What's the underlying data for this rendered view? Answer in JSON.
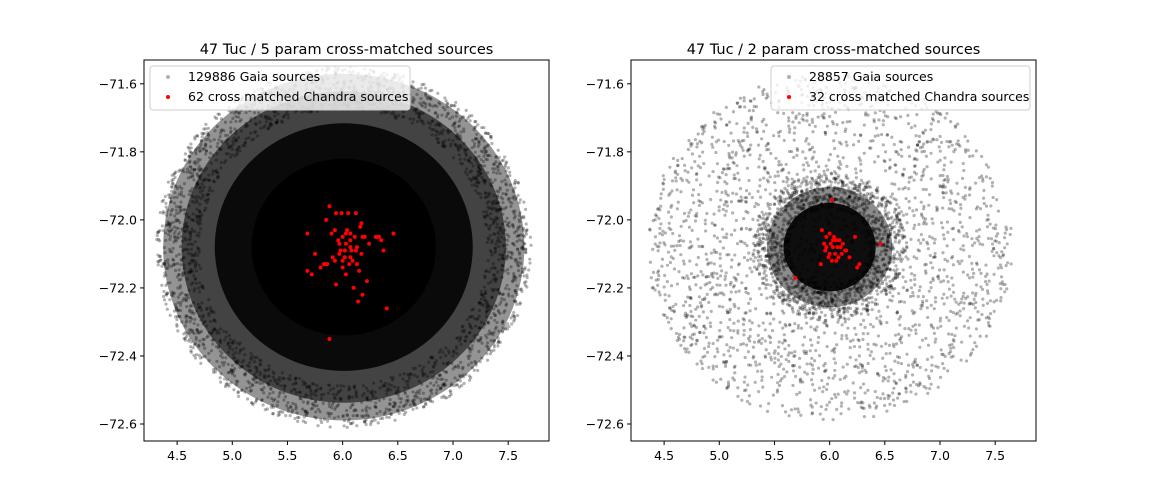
{
  "chart_data": [
    {
      "type": "scatter",
      "title": "47 Tuc / 5 param cross-matched sources",
      "xlabel": "",
      "ylabel": "",
      "xlim": [
        4.2,
        7.87
      ],
      "ylim": [
        -72.65,
        -71.53
      ],
      "xticks": [
        4.5,
        5.0,
        5.5,
        6.0,
        6.5,
        7.0,
        7.5
      ],
      "xtick_labels": [
        "4.5",
        "5.0",
        "5.5",
        "6.0",
        "6.5",
        "7.0",
        "7.5"
      ],
      "yticks": [
        -71.6,
        -71.8,
        -72.0,
        -72.2,
        -72.4,
        -72.6
      ],
      "ytick_labels": [
        "−71.6",
        "−71.8",
        "−72.0",
        "−72.2",
        "−72.4",
        "−72.6"
      ],
      "legend_position": "top-left",
      "grid": false,
      "cluster": {
        "center_x": 6.01,
        "center_y": -72.08,
        "field_radius_x": 1.67,
        "field_radius_y": 0.52
      },
      "series": [
        {
          "name": "129886 Gaia sources",
          "color": "#000000",
          "count": 129886,
          "style": "dense"
        },
        {
          "name": "62 cross matched Chandra sources",
          "color": "#ff0000",
          "count": 62,
          "x": [
            5.88,
            5.94,
            5.99,
            6.05,
            6.12,
            6.17,
            6.16,
            6.04,
            6.0,
            5.96,
            6.07,
            6.03,
            6.02,
            6.08,
            5.9,
            6.11,
            6.2,
            6.33,
            6.35,
            6.46,
            6.37,
            5.68,
            5.72,
            5.8,
            5.84,
            5.93,
            6.0,
            6.06,
            6.02,
            6.12,
            5.97,
            6.07,
            5.97,
            6.09,
            6.15,
            5.91,
            5.86,
            6.24,
            6.3,
            6.31,
            6.4,
            6.18,
            5.68,
            5.85,
            5.93,
            6.03,
            6.07,
            6.13,
            5.94,
            6.03,
            6.1,
            5.75,
            6.0,
            6.17,
            5.88,
            6.22,
            6.14,
            6.07,
            5.98,
            6.18,
            6.13,
            5.83
          ],
          "y": [
            -71.96,
            -71.98,
            -71.98,
            -71.98,
            -71.98,
            -72.01,
            -72.02,
            -72.03,
            -72.05,
            -72.06,
            -72.06,
            -72.07,
            -72.09,
            -72.09,
            -72.04,
            -72.05,
            -72.05,
            -72.05,
            -72.06,
            -72.04,
            -72.09,
            -72.04,
            -72.16,
            -72.14,
            -72.13,
            -72.12,
            -72.12,
            -72.13,
            -72.11,
            -72.09,
            -72.07,
            -72.08,
            -72.1,
            -72.12,
            -72.15,
            -72.11,
            -72.13,
            -72.07,
            -72.05,
            -72.05,
            -72.26,
            -72.22,
            -72.15,
            -72.0,
            -72.03,
            -72.04,
            -72.04,
            -72.08,
            -72.19,
            -72.16,
            -72.2,
            -72.1,
            -72.14,
            -72.1,
            -72.35,
            -72.18,
            -72.24,
            -72.11,
            -72.09,
            -72.05,
            -72.13,
            -72.13
          ]
        }
      ]
    },
    {
      "type": "scatter",
      "title": "47 Tuc / 2 param cross-matched sources",
      "xlabel": "",
      "ylabel": "",
      "xlim": [
        4.2,
        7.87
      ],
      "ylim": [
        -72.65,
        -71.53
      ],
      "xticks": [
        4.5,
        5.0,
        5.5,
        6.0,
        6.5,
        7.0,
        7.5
      ],
      "xtick_labels": [
        "4.5",
        "5.0",
        "5.5",
        "6.0",
        "6.5",
        "7.0",
        "7.5"
      ],
      "yticks": [
        -71.6,
        -71.8,
        -72.0,
        -72.2,
        -72.4,
        -72.6
      ],
      "ytick_labels": [
        "−71.6",
        "−71.8",
        "−72.0",
        "−72.2",
        "−72.4",
        "−72.6"
      ],
      "legend_position": "top-right",
      "grid": false,
      "cluster": {
        "center_x": 6.0,
        "center_y": -72.08,
        "field_radius_x": 1.67,
        "field_radius_y": 0.52
      },
      "series": [
        {
          "name": "28857 Gaia sources",
          "color": "#000000",
          "count": 28857,
          "style": "sparse"
        },
        {
          "name": "32 cross matched Chandra sources",
          "color": "#ff0000",
          "count": 32,
          "x": [
            6.02,
            5.93,
            5.97,
            6.0,
            6.04,
            6.06,
            6.09,
            6.12,
            5.95,
            6.01,
            6.03,
            6.07,
            6.1,
            6.14,
            5.96,
            6.0,
            6.05,
            6.08,
            5.99,
            6.02,
            6.06,
            5.92,
            6.18,
            6.23,
            6.27,
            6.46,
            5.69,
            6.25,
            6.11,
            5.97,
            6.15,
            6.03
          ],
          "y": [
            -71.94,
            -72.03,
            -72.05,
            -72.04,
            -72.05,
            -72.06,
            -72.06,
            -72.07,
            -72.07,
            -72.07,
            -72.08,
            -72.08,
            -72.08,
            -72.09,
            -72.09,
            -72.1,
            -72.1,
            -72.11,
            -72.11,
            -72.12,
            -72.12,
            -72.13,
            -72.11,
            -72.05,
            -72.13,
            -72.07,
            -72.17,
            -72.14,
            -72.1,
            -72.08,
            -72.09,
            -72.06
          ]
        }
      ]
    }
  ]
}
